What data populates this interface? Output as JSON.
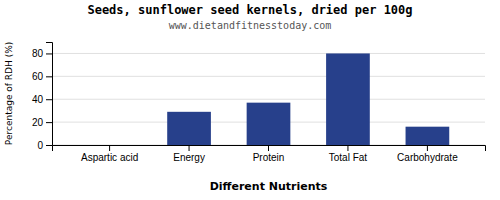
{
  "chart_data": {
    "type": "bar",
    "title": "Seeds, sunflower seed kernels, dried per 100g",
    "subtitle": "www.dietandfitnesstoday.com",
    "xlabel": "Different Nutrients",
    "ylabel": "Percentage of RDH (%)",
    "categories": [
      "Aspartic acid",
      "Energy",
      "Protein",
      "Total Fat",
      "Carbohydrate"
    ],
    "values": [
      0,
      29,
      37,
      80,
      16
    ],
    "color": "#27408b",
    "ylim": [
      0,
      90
    ],
    "yticks": [
      0,
      20,
      40,
      60,
      80
    ],
    "grid": true
  }
}
